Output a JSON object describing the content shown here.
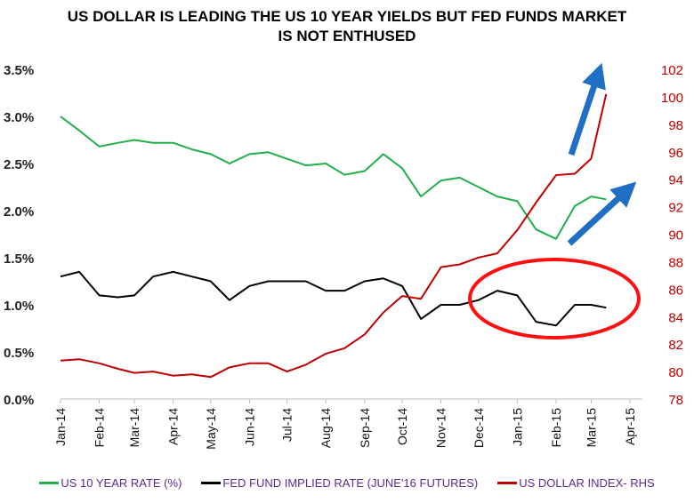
{
  "chart_data": {
    "type": "line",
    "title": [
      "US DOLLAR IS LEADING THE US 10 YEAR YIELDS BUT FED FUNDS MARKET",
      "IS NOT ENTHUSED"
    ],
    "x_tick_labels": [
      "Jan-14",
      "Feb-14",
      "Mar-14",
      "Apr-14",
      "May-14",
      "Jun-14",
      "Jul-14",
      "Aug-14",
      "Sep-14",
      "Oct-14",
      "Nov-14",
      "Dec-14",
      "Jan-15",
      "Feb-15",
      "Mar-15",
      "Apr-15"
    ],
    "y_left": {
      "range": [
        0,
        3.5
      ],
      "ticks": [
        "0.0%",
        "0.5%",
        "1.0%",
        "1.5%",
        "2.0%",
        "2.5%",
        "3.0%",
        "3.5%"
      ]
    },
    "y_right": {
      "range": [
        78,
        102
      ],
      "ticks": [
        "78",
        "80",
        "82",
        "84",
        "86",
        "88",
        "90",
        "92",
        "94",
        "96",
        "98",
        "100",
        "102"
      ]
    },
    "x": [
      "2014-01-01",
      "2014-01-16",
      "2014-02-01",
      "2014-02-16",
      "2014-03-01",
      "2014-03-16",
      "2014-04-01",
      "2014-04-16",
      "2014-05-01",
      "2014-05-16",
      "2014-06-01",
      "2014-06-16",
      "2014-07-01",
      "2014-07-16",
      "2014-08-01",
      "2014-08-16",
      "2014-09-01",
      "2014-09-16",
      "2014-10-01",
      "2014-10-16",
      "2014-11-01",
      "2014-11-16",
      "2014-12-01",
      "2014-12-16",
      "2015-01-01",
      "2015-01-16",
      "2015-02-01",
      "2015-02-16",
      "2015-03-01",
      "2015-03-13"
    ],
    "series": [
      {
        "name": "US 10 YEAR RATE (%)",
        "axis": "left",
        "color": "#1fb04a",
        "values": [
          3.0,
          2.85,
          2.68,
          2.72,
          2.75,
          2.72,
          2.72,
          2.65,
          2.6,
          2.5,
          2.6,
          2.62,
          2.55,
          2.48,
          2.5,
          2.38,
          2.42,
          2.6,
          2.45,
          2.15,
          2.32,
          2.35,
          2.25,
          2.15,
          2.1,
          1.8,
          1.7,
          2.05,
          2.15,
          2.12
        ]
      },
      {
        "name": "FED FUND IMPLIED RATE (JUNE'16 FUTURES)",
        "axis": "left",
        "color": "#000000",
        "values": [
          1.3,
          1.35,
          1.1,
          1.08,
          1.1,
          1.3,
          1.35,
          1.3,
          1.25,
          1.05,
          1.2,
          1.25,
          1.25,
          1.25,
          1.15,
          1.15,
          1.25,
          1.28,
          1.2,
          0.85,
          1.0,
          1.0,
          1.05,
          1.15,
          1.1,
          0.82,
          0.78,
          1.0,
          1.0,
          0.97
        ]
      },
      {
        "name": "US DOLLAR INDEX- RHS",
        "axis": "right",
        "color": "#c00000",
        "values": [
          80.8,
          80.9,
          80.6,
          80.2,
          79.9,
          80.0,
          79.7,
          79.8,
          79.6,
          80.3,
          80.6,
          80.6,
          80.0,
          80.5,
          81.3,
          81.7,
          82.7,
          84.3,
          85.5,
          85.3,
          87.6,
          87.8,
          88.3,
          88.6,
          90.3,
          92.3,
          94.3,
          94.4,
          95.5,
          100.2
        ]
      }
    ],
    "annotations": {
      "arrow_color": "#1f6fc5",
      "ellipse_color": "#ff1010"
    },
    "grid": false,
    "legend": "bottom"
  }
}
